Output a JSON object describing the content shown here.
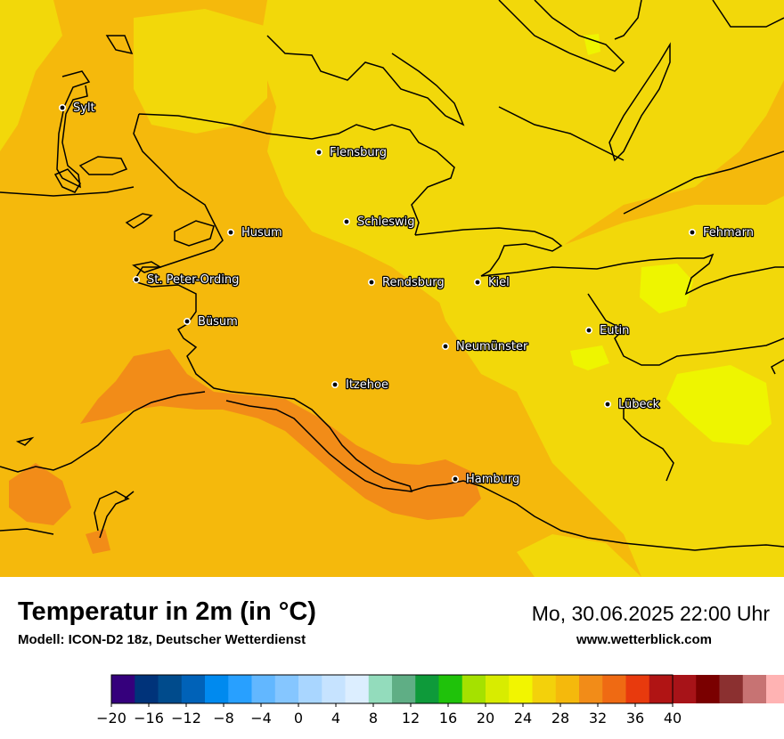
{
  "map": {
    "colors": {
      "background": "#f5b90c",
      "cool_region": "#f2d80a",
      "coolest_region": "#eef500",
      "warm_region": "#f28c18",
      "coastline": "#000000"
    },
    "cities": [
      {
        "name": "Sylt"
      },
      {
        "name": "Flensburg"
      },
      {
        "name": "Schleswig"
      },
      {
        "name": "Husum"
      },
      {
        "name": "Fehmarn"
      },
      {
        "name": "St. Peter-Ording"
      },
      {
        "name": "Rendsburg"
      },
      {
        "name": "Kiel"
      },
      {
        "name": "Büsum"
      },
      {
        "name": "Eutin"
      },
      {
        "name": "Neumünster"
      },
      {
        "name": "Itzehoe"
      },
      {
        "name": "Lübeck"
      },
      {
        "name": "Hamburg"
      }
    ]
  },
  "footer": {
    "title": "Temperatur in 2m (in °C)",
    "model": "Modell: ICON-D2 18z, Deutscher Wetterdienst",
    "datetime": "Mo, 30.06.2025 22:00 Uhr",
    "website": "www.wetterblick.com"
  },
  "colorbar": {
    "min": -20,
    "max": 40,
    "step": 2.5,
    "tick_labels": [
      "−20",
      "−16",
      "−12",
      "−8",
      "−4",
      "0",
      "4",
      "8",
      "12",
      "16",
      "20",
      "24",
      "28",
      "32",
      "36",
      "40"
    ],
    "tick_values": [
      -20,
      -16,
      -12,
      -8,
      -4,
      0,
      4,
      8,
      12,
      16,
      20,
      24,
      28,
      32,
      36,
      40
    ],
    "colors": [
      "#35007c",
      "#00337a",
      "#004b8c",
      "#0062b8",
      "#008aef",
      "#28a0ff",
      "#62b7ff",
      "#85c6ff",
      "#a9d6ff",
      "#c6e3ff",
      "#dceeff",
      "#93dcbc",
      "#5fae85",
      "#0e9a3a",
      "#1fc20a",
      "#a5e100",
      "#d8ec00",
      "#f2f500",
      "#f3d10b",
      "#f5b90c",
      "#f28c18",
      "#ef6a13",
      "#e83a0d",
      "#b01414",
      "#a71318",
      "#7a0000",
      "#8b3030",
      "#c77373",
      "#ffb3b3",
      "#ffd6dc"
    ]
  }
}
